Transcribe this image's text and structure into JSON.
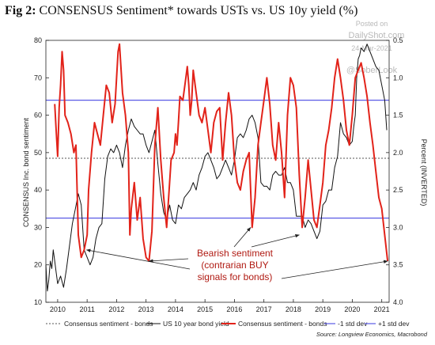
{
  "title_prefix": "Fig 2:",
  "title_main": "CONSENSUS Sentiment* towards USTs vs. US 10y yield (%)",
  "watermark": {
    "line1": "Posted on",
    "line2": "DailyShot.com",
    "line3": "24-Mar-2021",
    "line4": "@SoberLook"
  },
  "source": "Source: Longview Economics, Macrobond",
  "annotation": {
    "line1": "Bearish sentiment",
    "line2": "(contrarian BUY",
    "line3": "signals for bonds)"
  },
  "colors": {
    "sentiment": "#e2231a",
    "yield": "#111111",
    "band": "#5a5ae6",
    "mean": "#555555",
    "annotation": "#b01a12"
  },
  "chart_data": {
    "type": "line",
    "ylabel": "CONSENSUS Inc. bond sentiment",
    "y2label": "Percent (INVERTED)",
    "x_ticks": [
      "2010",
      "2011",
      "2012",
      "2013",
      "2014",
      "2015",
      "2016",
      "2017",
      "2018",
      "2019",
      "2020",
      "2021"
    ],
    "xlim": [
      2009.6,
      2021.25
    ],
    "y_ticks": [
      10,
      20,
      30,
      40,
      50,
      60,
      70,
      80
    ],
    "ylim": [
      10,
      80
    ],
    "y2_ticks": [
      "0.5",
      "1.0",
      "1.5",
      "2.0",
      "2.5",
      "3.0",
      "3.5",
      "4.0"
    ],
    "y2lim": [
      4.0,
      0.5
    ],
    "y2_inverted": true,
    "grid": false,
    "legend": [
      "Consensus sentiment - bonds",
      "US 10 year bond yield",
      "Consensus sentiment - bonds",
      "-1 std dev",
      "+1 std dev"
    ],
    "mean": 48.5,
    "upper_band": 64,
    "lower_band": 32.5,
    "series": [
      {
        "name": "Consensus sentiment - bonds",
        "axis": "left",
        "x": [
          2009.9,
          2009.95,
          2010.0,
          2010.05,
          2010.1,
          2010.15,
          2010.2,
          2010.25,
          2010.35,
          2010.45,
          2010.55,
          2010.62,
          2010.7,
          2010.8,
          2010.9,
          2011.0,
          2011.05,
          2011.15,
          2011.25,
          2011.35,
          2011.45,
          2011.55,
          2011.65,
          2011.75,
          2011.85,
          2011.95,
          2012.0,
          2012.05,
          2012.1,
          2012.2,
          2012.3,
          2012.4,
          2012.45,
          2012.5,
          2012.6,
          2012.7,
          2012.8,
          2012.9,
          2013.0,
          2013.1,
          2013.2,
          2013.3,
          2013.4,
          2013.5,
          2013.6,
          2013.7,
          2013.75,
          2013.85,
          2013.95,
          2014.0,
          2014.05,
          2014.1,
          2014.15,
          2014.25,
          2014.35,
          2014.4,
          2014.45,
          2014.5,
          2014.55,
          2014.6,
          2014.7,
          2014.8,
          2014.9,
          2015.0,
          2015.1,
          2015.2,
          2015.3,
          2015.4,
          2015.5,
          2015.6,
          2015.7,
          2015.8,
          2015.9,
          2016.0,
          2016.1,
          2016.2,
          2016.3,
          2016.4,
          2016.5,
          2016.6,
          2016.7,
          2016.8,
          2016.9,
          2017.0,
          2017.1,
          2017.2,
          2017.3,
          2017.4,
          2017.5,
          2017.6,
          2017.7,
          2017.8,
          2017.9,
          2018.0,
          2018.1,
          2018.2,
          2018.3,
          2018.4,
          2018.5,
          2018.6,
          2018.7,
          2018.8,
          2018.9,
          2019.0,
          2019.1,
          2019.2,
          2019.3,
          2019.4,
          2019.5,
          2019.6,
          2019.7,
          2019.8,
          2019.9,
          2020.0,
          2020.1,
          2020.2,
          2020.3,
          2020.4,
          2020.5,
          2020.6,
          2020.7,
          2020.8,
          2020.9,
          2021.0,
          2021.1,
          2021.2
        ],
        "y": [
          63,
          56,
          49,
          62,
          68,
          77,
          72,
          60,
          58,
          55,
          50,
          52,
          28,
          22,
          24,
          28,
          40,
          50,
          58,
          55,
          52,
          60,
          68,
          66,
          58,
          63,
          70,
          77,
          79,
          66,
          60,
          50,
          28,
          35,
          42,
          32,
          38,
          27,
          22,
          21,
          29,
          52,
          62,
          48,
          38,
          30,
          36,
          48,
          50,
          55,
          52,
          58,
          65,
          64,
          70,
          73,
          68,
          60,
          64,
          72,
          66,
          60,
          58,
          62,
          56,
          50,
          58,
          61,
          62,
          48,
          58,
          66,
          60,
          48,
          42,
          40,
          45,
          48,
          50,
          30,
          38,
          52,
          58,
          64,
          70,
          63,
          52,
          48,
          58,
          50,
          38,
          60,
          70,
          68,
          62,
          44,
          30,
          38,
          48,
          40,
          32,
          30,
          36,
          42,
          52,
          56,
          62,
          70,
          75,
          70,
          64,
          56,
          52,
          60,
          70,
          72,
          74,
          70,
          65,
          58,
          52,
          45,
          38,
          35,
          28,
          21
        ]
      },
      {
        "name": "US 10 year bond yield",
        "axis": "right",
        "x": [
          2009.6,
          2009.65,
          2009.7,
          2009.75,
          2009.8,
          2009.85,
          2009.9,
          2009.95,
          2010.0,
          2010.1,
          2010.2,
          2010.3,
          2010.4,
          2010.5,
          2010.6,
          2010.7,
          2010.8,
          2010.9,
          2011.0,
          2011.1,
          2011.2,
          2011.3,
          2011.4,
          2011.5,
          2011.6,
          2011.7,
          2011.8,
          2011.9,
          2012.0,
          2012.1,
          2012.2,
          2012.3,
          2012.4,
          2012.5,
          2012.6,
          2012.7,
          2012.8,
          2012.9,
          2013.0,
          2013.1,
          2013.2,
          2013.3,
          2013.4,
          2013.5,
          2013.6,
          2013.7,
          2013.8,
          2013.9,
          2014.0,
          2014.1,
          2014.2,
          2014.3,
          2014.4,
          2014.5,
          2014.6,
          2014.7,
          2014.8,
          2014.9,
          2015.0,
          2015.1,
          2015.2,
          2015.3,
          2015.4,
          2015.5,
          2015.6,
          2015.7,
          2015.8,
          2015.9,
          2016.0,
          2016.1,
          2016.2,
          2016.3,
          2016.4,
          2016.5,
          2016.6,
          2016.7,
          2016.8,
          2016.9,
          2017.0,
          2017.1,
          2017.2,
          2017.3,
          2017.4,
          2017.5,
          2017.6,
          2017.7,
          2017.8,
          2017.9,
          2018.0,
          2018.1,
          2018.2,
          2018.3,
          2018.4,
          2018.5,
          2018.6,
          2018.7,
          2018.8,
          2018.9,
          2019.0,
          2019.1,
          2019.2,
          2019.3,
          2019.4,
          2019.5,
          2019.6,
          2019.7,
          2019.8,
          2019.9,
          2020.0,
          2020.05,
          2020.1,
          2020.15,
          2020.2,
          2020.25,
          2020.3,
          2020.4,
          2020.5,
          2020.6,
          2020.7,
          2020.8,
          2020.9,
          2021.0,
          2021.1,
          2021.17
        ],
        "y": [
          3.5,
          3.85,
          3.7,
          3.45,
          3.55,
          3.3,
          3.45,
          3.6,
          3.75,
          3.65,
          3.8,
          3.55,
          3.25,
          2.95,
          2.75,
          2.55,
          2.7,
          3.3,
          3.4,
          3.5,
          3.4,
          3.15,
          3.0,
          2.95,
          2.35,
          2.05,
          1.95,
          2.0,
          1.9,
          2.0,
          2.2,
          1.9,
          1.7,
          1.55,
          1.65,
          1.7,
          1.75,
          1.75,
          1.9,
          2.0,
          1.85,
          1.7,
          2.15,
          2.55,
          2.8,
          2.9,
          2.7,
          2.9,
          2.95,
          2.7,
          2.75,
          2.6,
          2.55,
          2.5,
          2.4,
          2.5,
          2.3,
          2.2,
          2.05,
          2.0,
          2.1,
          2.2,
          2.35,
          2.3,
          2.2,
          2.1,
          2.2,
          2.3,
          2.1,
          1.8,
          1.75,
          1.8,
          1.7,
          1.55,
          1.5,
          1.6,
          1.8,
          2.4,
          2.45,
          2.45,
          2.5,
          2.3,
          2.25,
          2.3,
          2.3,
          2.2,
          2.4,
          2.4,
          2.5,
          2.85,
          2.85,
          2.85,
          3.0,
          2.9,
          2.95,
          3.05,
          3.15,
          3.05,
          2.7,
          2.65,
          2.5,
          2.5,
          2.2,
          2.05,
          1.6,
          1.75,
          1.8,
          1.9,
          1.85,
          1.65,
          1.5,
          1.0,
          0.75,
          0.7,
          0.6,
          0.65,
          0.55,
          0.65,
          0.75,
          0.85,
          0.9,
          1.1,
          1.3,
          1.7
        ]
      }
    ]
  }
}
